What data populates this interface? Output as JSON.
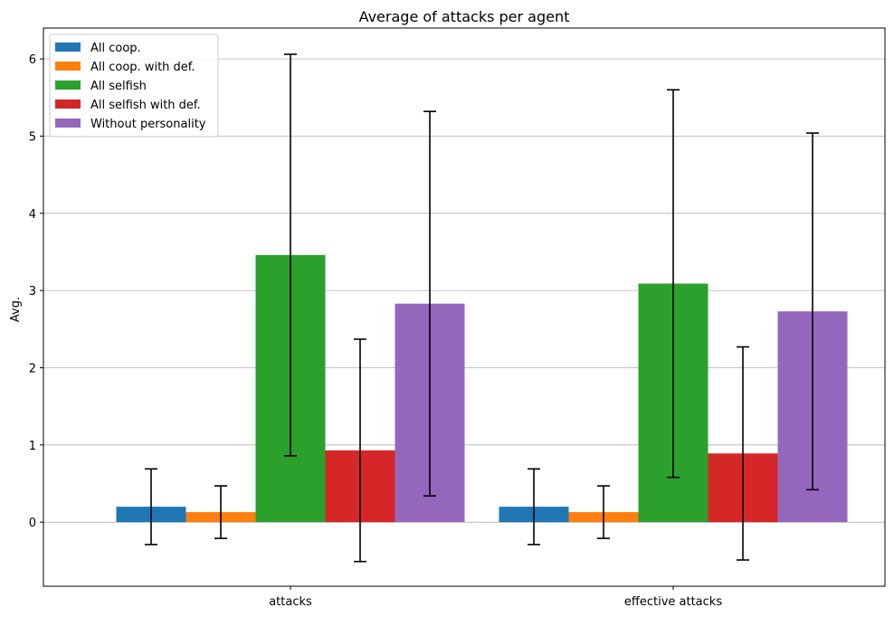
{
  "chart_data": {
    "type": "bar",
    "title": "Average of attacks per agent",
    "ylabel": "Avg.",
    "xlabel": "",
    "categories": [
      "attacks",
      "effective attacks"
    ],
    "ylim": [
      -0.83,
      6.4
    ],
    "yticks": [
      0,
      1,
      2,
      3,
      4,
      5,
      6
    ],
    "grid": "y",
    "legend_position": "top-left",
    "series": [
      {
        "name": "All coop.",
        "color": "#1f77b4",
        "values": [
          0.2,
          0.2
        ],
        "errors": [
          0.49,
          0.49
        ]
      },
      {
        "name": "All coop. with def.",
        "color": "#ff7f0e",
        "values": [
          0.13,
          0.13
        ],
        "errors": [
          0.34,
          0.34
        ]
      },
      {
        "name": "All selfish",
        "color": "#2ca02c",
        "values": [
          3.46,
          3.09
        ],
        "errors": [
          2.6,
          2.51
        ]
      },
      {
        "name": "All selfish with def.",
        "color": "#d62728",
        "values": [
          0.93,
          0.89
        ],
        "errors": [
          1.44,
          1.38
        ]
      },
      {
        "name": "Without personality",
        "color": "#9467bd",
        "values": [
          2.83,
          2.73
        ],
        "errors": [
          2.49,
          2.31
        ]
      }
    ]
  }
}
